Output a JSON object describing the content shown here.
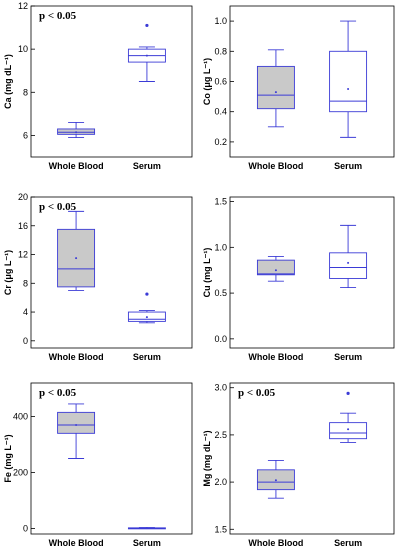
{
  "chart_data": [
    {
      "type": "box",
      "ylabel": "Ca (mg dL⁻¹)",
      "annotation": "p < 0.05",
      "ylim": [
        5,
        12
      ],
      "yticks": [
        6,
        8,
        10,
        12
      ],
      "categories": [
        "Whole Blood",
        "Serum"
      ],
      "boxes": [
        {
          "category": "Whole Blood",
          "min": 5.9,
          "q1": 6.05,
          "median": 6.15,
          "q3": 6.3,
          "max": 6.6,
          "mean": 6.15,
          "outliers": []
        },
        {
          "category": "Serum",
          "min": 8.5,
          "q1": 9.4,
          "median": 9.7,
          "q3": 10.0,
          "max": 10.1,
          "mean": 9.7,
          "outliers": [
            11.1
          ]
        }
      ]
    },
    {
      "type": "box",
      "ylabel": "Co (μg L⁻¹)",
      "annotation": "",
      "ylim": [
        0.1,
        1.1
      ],
      "yticks": [
        0.2,
        0.4,
        0.6,
        0.8,
        1.0
      ],
      "categories": [
        "Whole Blood",
        "Serum"
      ],
      "boxes": [
        {
          "category": "Whole Blood",
          "min": 0.3,
          "q1": 0.42,
          "median": 0.51,
          "q3": 0.7,
          "max": 0.81,
          "mean": 0.53,
          "outliers": []
        },
        {
          "category": "Serum",
          "min": 0.23,
          "q1": 0.4,
          "median": 0.47,
          "q3": 0.8,
          "max": 1.0,
          "mean": 0.55,
          "outliers": []
        }
      ]
    },
    {
      "type": "box",
      "ylabel": "Cr (μg L⁻¹)",
      "annotation": "p < 0.05",
      "ylim": [
        -1,
        20
      ],
      "yticks": [
        0,
        4,
        8,
        12,
        16,
        20
      ],
      "categories": [
        "Whole Blood",
        "Serum"
      ],
      "boxes": [
        {
          "category": "Whole Blood",
          "min": 7.0,
          "q1": 7.5,
          "median": 10.0,
          "q3": 15.5,
          "max": 18.0,
          "mean": 11.5,
          "outliers": []
        },
        {
          "category": "Serum",
          "min": 2.5,
          "q1": 2.7,
          "median": 3.0,
          "q3": 4.0,
          "max": 4.2,
          "mean": 3.3,
          "outliers": [
            6.5
          ]
        }
      ]
    },
    {
      "type": "box",
      "ylabel": "Cu (mg L⁻¹)",
      "annotation": "",
      "ylim": [
        -0.1,
        1.55
      ],
      "yticks": [
        0.0,
        0.5,
        1.0,
        1.5
      ],
      "categories": [
        "Whole Blood",
        "Serum"
      ],
      "boxes": [
        {
          "category": "Whole Blood",
          "min": 0.63,
          "q1": 0.7,
          "median": 0.71,
          "q3": 0.86,
          "max": 0.9,
          "mean": 0.75,
          "outliers": []
        },
        {
          "category": "Serum",
          "min": 0.56,
          "q1": 0.66,
          "median": 0.78,
          "q3": 0.94,
          "max": 1.24,
          "mean": 0.83,
          "outliers": []
        }
      ]
    },
    {
      "type": "box",
      "ylabel": "Fe (mg L⁻¹)",
      "annotation": "p < 0.05",
      "ylim": [
        -20,
        520
      ],
      "yticks": [
        0,
        200,
        400
      ],
      "categories": [
        "Whole Blood",
        "Serum"
      ],
      "boxes": [
        {
          "category": "Whole Blood",
          "min": 250,
          "q1": 340,
          "median": 370,
          "q3": 415,
          "max": 445,
          "mean": 370,
          "outliers": []
        },
        {
          "category": "Serum",
          "min": 0,
          "q1": 0,
          "median": 1,
          "q3": 2,
          "max": 3,
          "mean": 1,
          "outliers": []
        }
      ]
    },
    {
      "type": "box",
      "ylabel": "Mg (mg dL⁻¹)",
      "annotation": "p < 0.05",
      "ylim": [
        1.45,
        3.05
      ],
      "yticks": [
        1.5,
        2.0,
        2.5,
        3.0
      ],
      "categories": [
        "Whole Blood",
        "Serum"
      ],
      "boxes": [
        {
          "category": "Whole Blood",
          "min": 1.83,
          "q1": 1.92,
          "median": 2.0,
          "q3": 2.13,
          "max": 2.23,
          "mean": 2.02,
          "outliers": []
        },
        {
          "category": "Serum",
          "min": 2.42,
          "q1": 2.46,
          "median": 2.52,
          "q3": 2.63,
          "max": 2.73,
          "mean": 2.56,
          "outliers": [
            2.94
          ]
        }
      ]
    }
  ]
}
